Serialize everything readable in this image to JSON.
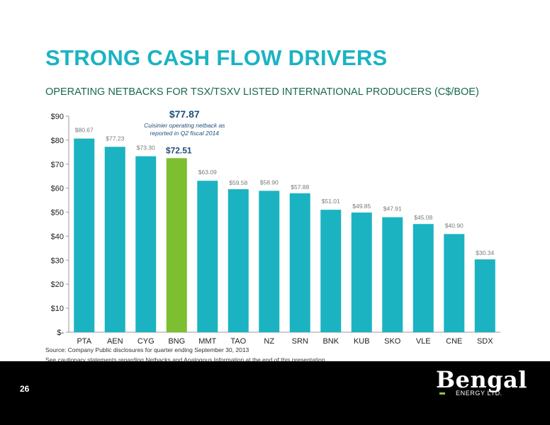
{
  "page": {
    "title": "STRONG CASH FLOW DRIVERS",
    "subtitle": "OPERATING NETBACKS FOR TSX/TSXV LISTED INTERNATIONAL PRODUCERS (C$/BOE)",
    "source_note": "Source: Company Public disclosures for quarter ending September 30, 2013",
    "caution_note": "See cautionary statements regarding Netbacks and Analogous Information at the end of this presentation",
    "page_number": "26",
    "logo_text": "Bengal",
    "logo_subtext": "ENERGY LTD."
  },
  "colors": {
    "accent_title": "#1bb3c2",
    "subtitle": "#1a6a4a",
    "bar_default": "#1bb3c2",
    "bar_highlight": "#7cbf30",
    "annotation": "#1f4f7a",
    "footer_bg": "#000000",
    "logo_accent": "#8cc63f"
  },
  "chart_data": {
    "type": "bar",
    "categories": [
      "PTA",
      "AEN",
      "CYG",
      "BNG",
      "MMT",
      "TAO",
      "NZ",
      "SRN",
      "BNK",
      "KUB",
      "SKO",
      "VLE",
      "CNE",
      "SDX"
    ],
    "values": [
      80.67,
      77.23,
      73.3,
      72.51,
      63.09,
      59.58,
      58.9,
      57.88,
      51.01,
      49.85,
      47.91,
      45.08,
      40.9,
      30.34
    ],
    "data_labels": [
      "$80.67",
      "$77.23",
      "$73.30",
      "$72.51",
      "$63.09",
      "$59.58",
      "$58.90",
      "$57.88",
      "$51.01",
      "$49.85",
      "$47.91",
      "$45.08",
      "$40.90",
      "$30.34"
    ],
    "highlight_index": 3,
    "ylim": [
      0,
      90
    ],
    "y_ticks": [
      0,
      10,
      20,
      30,
      40,
      50,
      60,
      70,
      80,
      90
    ],
    "y_tick_labels": [
      "$-",
      "$10",
      "$20",
      "$30",
      "$40",
      "$50",
      "$60",
      "$70",
      "$80",
      "$90"
    ],
    "grid": false,
    "annotation": {
      "value_label": "$77.87",
      "text_line1": "Cuisinier operating netback as",
      "text_line2": "reported in Q2 fiscal 2014"
    }
  }
}
